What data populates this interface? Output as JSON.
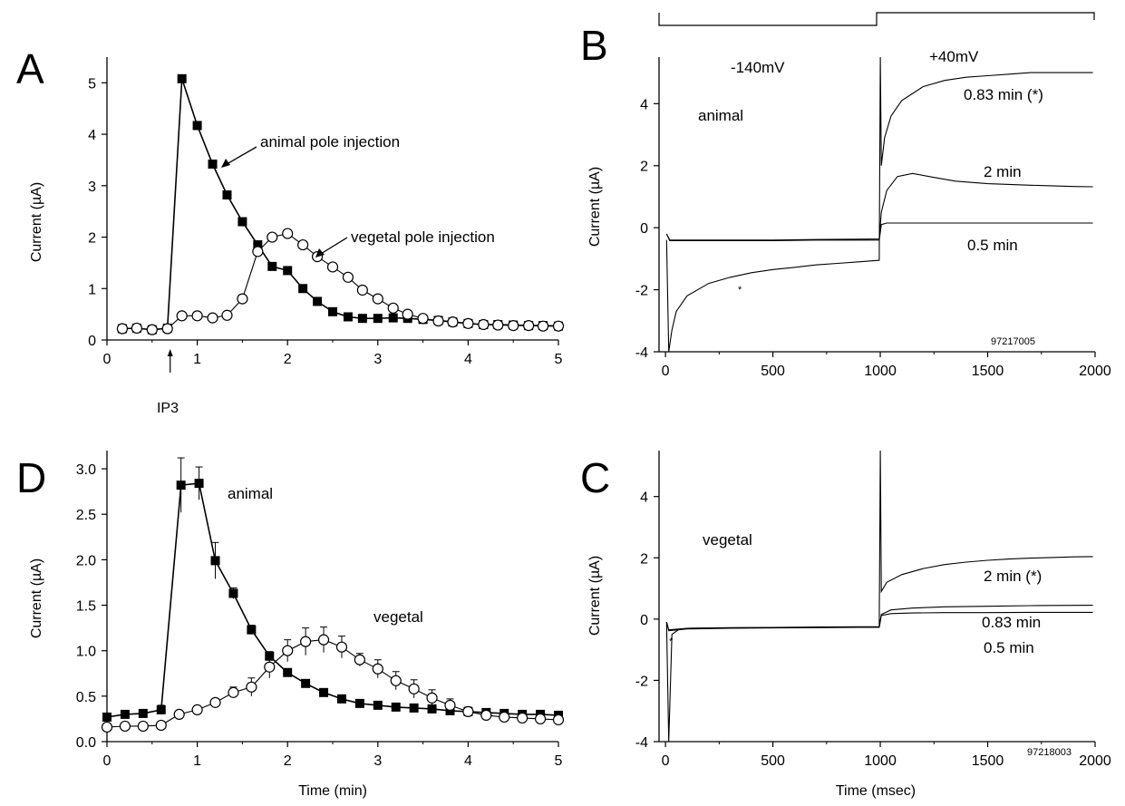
{
  "chart_data": [
    {
      "panel": "A",
      "type": "line",
      "ylabel": "Current (µA)",
      "xlim": [
        0,
        5
      ],
      "ylim": [
        0,
        5.5
      ],
      "xticks": [
        0,
        1,
        2,
        3,
        4,
        5
      ],
      "yticks": [
        0,
        1,
        2,
        3,
        4,
        5
      ],
      "marker_label": "IP3",
      "marker_x": 0.7,
      "annotations": [
        {
          "text": "animal pole injection",
          "series": "animal"
        },
        {
          "text": "vegetal pole injection",
          "series": "vegetal"
        }
      ],
      "series": [
        {
          "key": "animal",
          "marker": "square-filled",
          "x": [
            0.17,
            0.33,
            0.5,
            0.67,
            0.83,
            1.0,
            1.17,
            1.33,
            1.5,
            1.67,
            1.83,
            2.0,
            2.17,
            2.33,
            2.5,
            2.67,
            2.83,
            3.0,
            3.17,
            3.33,
            3.5,
            3.67,
            3.83,
            4.0,
            4.17,
            4.33,
            4.5,
            4.67,
            4.83,
            5.0
          ],
          "y": [
            0.22,
            0.23,
            0.2,
            0.23,
            5.08,
            4.17,
            3.42,
            2.82,
            2.3,
            1.85,
            1.43,
            1.35,
            1.0,
            0.75,
            0.55,
            0.45,
            0.42,
            0.42,
            0.43,
            0.42,
            0.4,
            0.38,
            0.35,
            0.32,
            0.3,
            0.3,
            0.29,
            0.28,
            0.28,
            0.27
          ]
        },
        {
          "key": "vegetal",
          "marker": "circle-open",
          "x": [
            0.17,
            0.33,
            0.5,
            0.67,
            0.83,
            1.0,
            1.17,
            1.33,
            1.5,
            1.67,
            1.83,
            2.0,
            2.17,
            2.33,
            2.5,
            2.67,
            2.83,
            3.0,
            3.17,
            3.33,
            3.5,
            3.67,
            3.83,
            4.0,
            4.17,
            4.33,
            4.5,
            4.67,
            4.83,
            5.0
          ],
          "y": [
            0.22,
            0.23,
            0.2,
            0.22,
            0.47,
            0.47,
            0.43,
            0.48,
            0.8,
            1.72,
            2.0,
            2.07,
            1.85,
            1.62,
            1.42,
            1.22,
            0.97,
            0.8,
            0.62,
            0.5,
            0.42,
            0.37,
            0.35,
            0.32,
            0.3,
            0.29,
            0.28,
            0.28,
            0.27,
            0.27
          ]
        }
      ]
    },
    {
      "panel": "B",
      "type": "line",
      "ylabel": "Current (µA)",
      "xlim": [
        0,
        2000
      ],
      "ylim": [
        -4,
        5.5
      ],
      "xticks": [
        0,
        500,
        1000,
        1500,
        2000
      ],
      "yticks": [
        -4,
        -2,
        0,
        2,
        4
      ],
      "labels": {
        "v1": "-140mV",
        "v2": "+40mV",
        "cond": "animal",
        "id": "97217005",
        "star": "*"
      },
      "trace_labels": [
        "0.83 min (*)",
        "2 min",
        "0.5 min"
      ],
      "series": [
        {
          "key": "0.83 min (*)",
          "x": [
            5,
            15,
            30,
            50,
            100,
            200,
            300,
            400,
            500,
            600,
            700,
            800,
            900,
            995,
            1000,
            1005,
            1020,
            1050,
            1100,
            1200,
            1300,
            1400,
            1500,
            1600,
            1700,
            1800,
            1900,
            1990
          ],
          "y": [
            -0.4,
            -4.0,
            -3.3,
            -2.7,
            -2.2,
            -1.8,
            -1.6,
            -1.45,
            -1.35,
            -1.28,
            -1.2,
            -1.15,
            -1.1,
            -1.05,
            5.5,
            2.0,
            2.9,
            3.6,
            4.1,
            4.55,
            4.75,
            4.85,
            4.9,
            4.95,
            5.0,
            5.0,
            5.0,
            5.0
          ]
        },
        {
          "key": "2 min",
          "x": [
            5,
            20,
            100,
            300,
            500,
            700,
            900,
            995,
            1005,
            1030,
            1080,
            1150,
            1250,
            1350,
            1500,
            1700,
            1900,
            1990
          ],
          "y": [
            -0.2,
            -0.4,
            -0.4,
            -0.4,
            -0.4,
            -0.38,
            -0.37,
            -0.36,
            0.5,
            1.2,
            1.65,
            1.75,
            1.62,
            1.5,
            1.42,
            1.37,
            1.33,
            1.32
          ]
        },
        {
          "key": "0.5 min",
          "x": [
            5,
            20,
            100,
            300,
            500,
            700,
            900,
            995,
            1005,
            1030,
            1100,
            1300,
            1500,
            1700,
            1990
          ],
          "y": [
            -0.2,
            -0.42,
            -0.42,
            -0.42,
            -0.42,
            -0.4,
            -0.4,
            -0.4,
            0.1,
            0.15,
            0.15,
            0.15,
            0.15,
            0.15,
            0.15
          ]
        }
      ]
    },
    {
      "panel": "D",
      "type": "line",
      "xlabel": "Time (min)",
      "ylabel": "Current (µA)",
      "xlim": [
        0,
        5
      ],
      "ylim": [
        0,
        3.2
      ],
      "xticks": [
        0,
        1,
        2,
        3,
        4,
        5
      ],
      "yticks": [
        0.0,
        0.5,
        1.0,
        1.5,
        2.0,
        2.5,
        3.0
      ],
      "series_labels": {
        "animal": "animal",
        "vegetal": "vegetal"
      },
      "series": [
        {
          "key": "animal",
          "marker": "square-filled",
          "x": [
            0.0,
            0.2,
            0.4,
            0.6,
            0.82,
            1.02,
            1.2,
            1.4,
            1.6,
            1.8,
            2.0,
            2.2,
            2.4,
            2.6,
            2.8,
            3.0,
            3.2,
            3.4,
            3.6,
            3.8,
            4.0,
            4.2,
            4.4,
            4.6,
            4.8,
            5.0
          ],
          "y": [
            0.27,
            0.3,
            0.31,
            0.35,
            2.82,
            2.84,
            1.99,
            1.63,
            1.23,
            0.94,
            0.76,
            0.64,
            0.54,
            0.47,
            0.42,
            0.4,
            0.38,
            0.37,
            0.36,
            0.34,
            0.33,
            0.32,
            0.31,
            0.3,
            0.3,
            0.29
          ],
          "err": [
            0.02,
            0.02,
            0.03,
            0.05,
            0.3,
            0.18,
            0.2,
            0.06,
            0.05,
            0.05,
            0.04,
            0.03,
            0.02,
            0.02,
            0.02,
            0.02,
            0.02,
            0.02,
            0.02,
            0.02,
            0.02,
            0.02,
            0.02,
            0.02,
            0.02,
            0.02
          ]
        },
        {
          "key": "vegetal",
          "marker": "circle-open",
          "x": [
            0.0,
            0.2,
            0.4,
            0.6,
            0.8,
            1.0,
            1.2,
            1.4,
            1.6,
            1.8,
            2.0,
            2.2,
            2.4,
            2.6,
            2.8,
            3.0,
            3.2,
            3.4,
            3.6,
            3.8,
            4.0,
            4.2,
            4.4,
            4.6,
            4.8,
            5.0
          ],
          "y": [
            0.16,
            0.17,
            0.17,
            0.18,
            0.3,
            0.35,
            0.43,
            0.54,
            0.6,
            0.82,
            1.0,
            1.1,
            1.12,
            1.04,
            0.9,
            0.8,
            0.67,
            0.58,
            0.48,
            0.4,
            0.33,
            0.29,
            0.27,
            0.26,
            0.25,
            0.24
          ],
          "err": [
            0.02,
            0.02,
            0.02,
            0.02,
            0.03,
            0.04,
            0.04,
            0.06,
            0.1,
            0.12,
            0.12,
            0.15,
            0.14,
            0.12,
            0.07,
            0.1,
            0.1,
            0.1,
            0.09,
            0.07,
            0.05,
            0.04,
            0.03,
            0.03,
            0.03,
            0.03
          ]
        }
      ]
    },
    {
      "panel": "C",
      "type": "line",
      "xlabel": "Time (msec)",
      "ylabel": "Current (µA)",
      "xlim": [
        0,
        2000
      ],
      "ylim": [
        -4,
        5.5
      ],
      "xticks": [
        0,
        500,
        1000,
        1500,
        2000
      ],
      "yticks": [
        -4,
        -2,
        0,
        2,
        4
      ],
      "labels": {
        "cond": "vegetal",
        "id": "97218003",
        "star": "*"
      },
      "trace_labels": [
        "2 min (*)",
        "0.83 min",
        "0.5 min"
      ],
      "series": [
        {
          "key": "2 min (*)",
          "x": [
            5,
            15,
            30,
            60,
            100,
            300,
            500,
            700,
            900,
            995,
            1000,
            1005,
            1030,
            1100,
            1200,
            1300,
            1400,
            1500,
            1600,
            1700,
            1800,
            1900,
            1990
          ],
          "y": [
            -0.1,
            -4.0,
            -0.5,
            -0.35,
            -0.3,
            -0.28,
            -0.27,
            -0.26,
            -0.25,
            -0.25,
            5.5,
            0.9,
            1.2,
            1.45,
            1.65,
            1.78,
            1.86,
            1.92,
            1.96,
            1.99,
            2.01,
            2.03,
            2.04
          ]
        },
        {
          "key": "0.83 min",
          "x": [
            5,
            15,
            100,
            300,
            500,
            700,
            900,
            995,
            1005,
            1050,
            1150,
            1300,
            1500,
            1700,
            1990
          ],
          "y": [
            -0.1,
            -0.35,
            -0.3,
            -0.29,
            -0.28,
            -0.27,
            -0.26,
            -0.26,
            0.15,
            0.3,
            0.36,
            0.4,
            0.42,
            0.44,
            0.45
          ]
        },
        {
          "key": "0.5 min",
          "x": [
            5,
            15,
            100,
            300,
            500,
            700,
            900,
            995,
            1005,
            1050,
            1150,
            1300,
            1500,
            1700,
            1990
          ],
          "y": [
            -0.1,
            -0.38,
            -0.32,
            -0.3,
            -0.29,
            -0.28,
            -0.27,
            -0.27,
            0.12,
            0.18,
            0.2,
            0.21,
            0.21,
            0.22,
            0.22
          ]
        }
      ]
    }
  ]
}
